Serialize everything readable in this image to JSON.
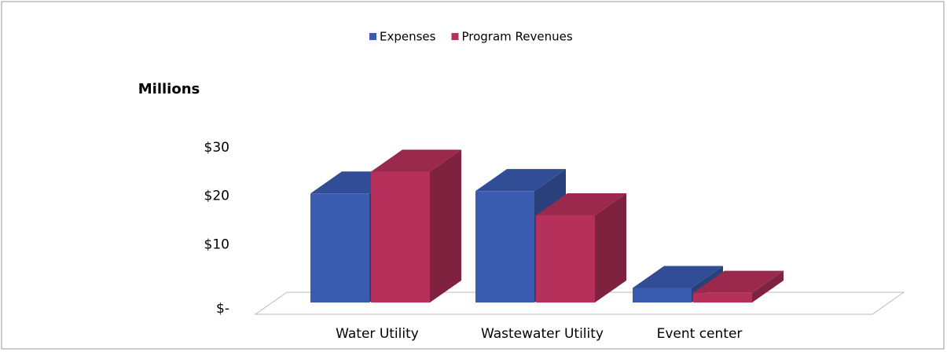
{
  "chart_data": {
    "type": "bar3d",
    "y_axis_label": "Millions",
    "categories": [
      "Water Utility",
      "Wastewater Utility",
      "Event center"
    ],
    "series": [
      {
        "name": "Expenses",
        "color": "#3a5bb0",
        "values": [
          22.5,
          23,
          3
        ]
      },
      {
        "name": "Program Revenues",
        "color": "#b5305a",
        "values": [
          27,
          18,
          2
        ]
      }
    ],
    "ylim": [
      0,
      30
    ],
    "yticks": [
      {
        "value": 0,
        "label": "$-"
      },
      {
        "value": 10,
        "label": "$10"
      },
      {
        "value": 20,
        "label": "$20"
      },
      {
        "value": 30,
        "label": "$30"
      }
    ],
    "legend": "top"
  }
}
